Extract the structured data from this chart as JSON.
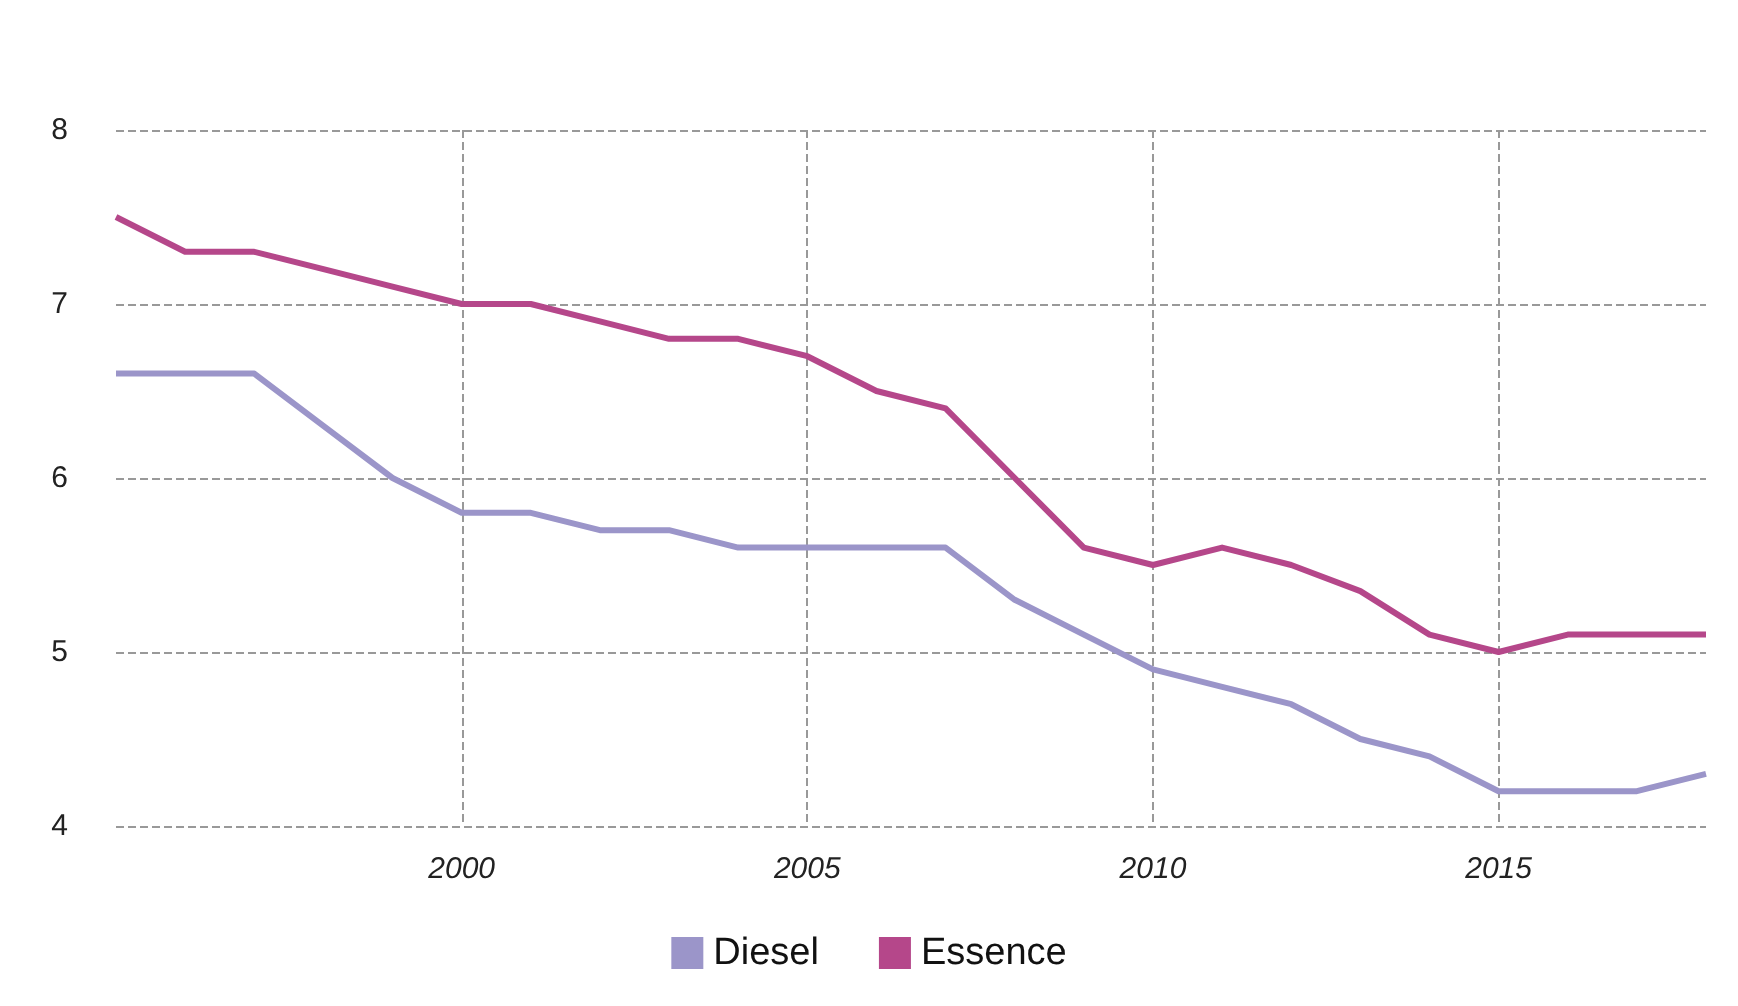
{
  "chart_data": {
    "type": "line",
    "x": [
      1995,
      1996,
      1997,
      1998,
      1999,
      2000,
      2001,
      2002,
      2003,
      2004,
      2005,
      2006,
      2007,
      2008,
      2009,
      2010,
      2011,
      2012,
      2013,
      2014,
      2015,
      2016,
      2017,
      2018
    ],
    "series": [
      {
        "name": "Diesel",
        "color": "#9b95c9",
        "values": [
          6.6,
          6.6,
          6.6,
          6.3,
          6.0,
          5.8,
          5.8,
          5.7,
          5.7,
          5.6,
          5.6,
          5.6,
          5.6,
          5.3,
          5.1,
          4.9,
          4.8,
          4.7,
          4.5,
          4.4,
          4.2,
          4.2,
          4.2,
          4.3
        ]
      },
      {
        "name": "Essence",
        "color": "#b5478a",
        "values": [
          7.5,
          7.3,
          7.3,
          7.2,
          7.1,
          7.0,
          7.0,
          6.9,
          6.8,
          6.8,
          6.7,
          6.5,
          6.4,
          6.0,
          5.6,
          5.5,
          5.6,
          5.5,
          5.35,
          5.1,
          5.0,
          5.1,
          5.1,
          5.1
        ]
      }
    ],
    "xlim": [
      1995,
      2018
    ],
    "xticks": [
      2000,
      2005,
      2010,
      2015
    ],
    "ylim": [
      4,
      8
    ],
    "yticks": [
      4,
      5,
      6,
      7,
      8
    ],
    "grid": true,
    "legend": "bottom",
    "marker": "none",
    "line_style": "solid"
  }
}
